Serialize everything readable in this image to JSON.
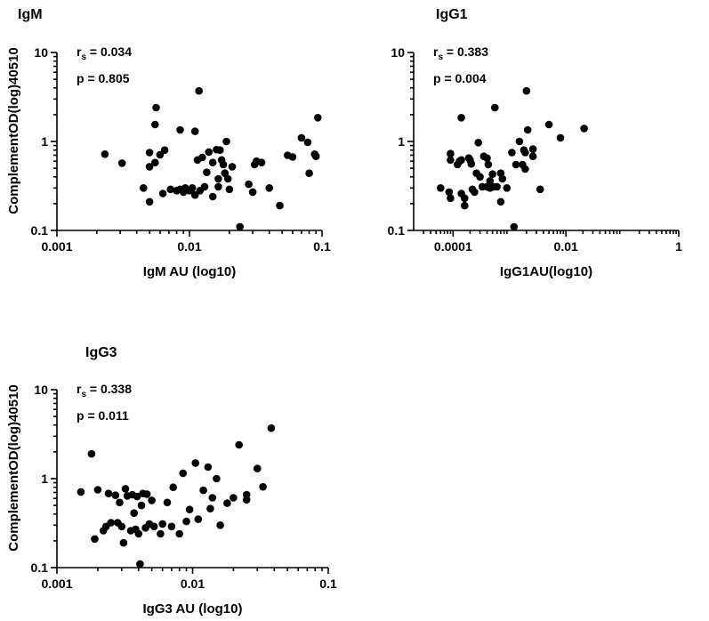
{
  "chart_data": [
    {
      "type": "scatter",
      "id": "igm",
      "title": "IgM",
      "xlabel": "IgM AU (log10)",
      "ylabel": "ComplementOD(log)40510",
      "xscale": "log",
      "yscale": "log",
      "xlim": [
        0.001,
        0.1
      ],
      "ylim": [
        0.1,
        10
      ],
      "xticks": [
        0.001,
        0.01,
        0.1
      ],
      "xtick_labels": [
        "0.001",
        "0.01",
        "0.1"
      ],
      "yticks": [
        0.1,
        1,
        10
      ],
      "ytick_labels": [
        "0.1",
        "1",
        "10"
      ],
      "stats": {
        "rs_prefix": "r",
        "rs_sub": "s",
        "rs_value": " = 0.034",
        "p_text": "p = 0.805"
      },
      "points": [
        [
          0.0023,
          0.72
        ],
        [
          0.0031,
          0.57
        ],
        [
          0.0045,
          0.3
        ],
        [
          0.005,
          0.75
        ],
        [
          0.005,
          0.52
        ],
        [
          0.005,
          0.21
        ],
        [
          0.0055,
          1.55
        ],
        [
          0.0056,
          2.4
        ],
        [
          0.0055,
          0.58
        ],
        [
          0.006,
          0.71
        ],
        [
          0.0063,
          0.26
        ],
        [
          0.0065,
          0.8
        ],
        [
          0.0072,
          0.29
        ],
        [
          0.008,
          0.28
        ],
        [
          0.0085,
          1.35
        ],
        [
          0.0085,
          0.29
        ],
        [
          0.009,
          0.27
        ],
        [
          0.0093,
          0.3
        ],
        [
          0.01,
          0.28
        ],
        [
          0.0105,
          0.3
        ],
        [
          0.011,
          1.3
        ],
        [
          0.011,
          0.25
        ],
        [
          0.0115,
          0.62
        ],
        [
          0.0118,
          3.7
        ],
        [
          0.012,
          0.28
        ],
        [
          0.0125,
          0.66
        ],
        [
          0.013,
          0.31
        ],
        [
          0.0135,
          0.45
        ],
        [
          0.014,
          0.76
        ],
        [
          0.015,
          0.58
        ],
        [
          0.015,
          0.24
        ],
        [
          0.016,
          0.81
        ],
        [
          0.0165,
          0.38
        ],
        [
          0.0165,
          0.31
        ],
        [
          0.017,
          0.8
        ],
        [
          0.0175,
          0.62
        ],
        [
          0.018,
          0.55
        ],
        [
          0.0185,
          0.44
        ],
        [
          0.019,
          1.0
        ],
        [
          0.0195,
          0.38
        ],
        [
          0.02,
          0.29
        ],
        [
          0.021,
          0.52
        ],
        [
          0.024,
          0.11
        ],
        [
          0.028,
          0.33
        ],
        [
          0.03,
          0.27
        ],
        [
          0.031,
          0.55
        ],
        [
          0.032,
          0.6
        ],
        [
          0.035,
          0.58
        ],
        [
          0.04,
          0.3
        ],
        [
          0.048,
          0.19
        ],
        [
          0.055,
          0.7
        ],
        [
          0.06,
          0.67
        ],
        [
          0.07,
          1.1
        ],
        [
          0.078,
          0.98
        ],
        [
          0.08,
          0.44
        ],
        [
          0.088,
          0.72
        ],
        [
          0.093,
          1.85
        ],
        [
          0.09,
          0.68
        ]
      ]
    },
    {
      "type": "scatter",
      "id": "igg1",
      "title": "IgG1",
      "xlabel": "IgG1AU(log10)",
      "ylabel": "",
      "xscale": "log",
      "yscale": "log",
      "xlim": [
        2e-05,
        1
      ],
      "ylim": [
        0.1,
        10
      ],
      "xticks": [
        0.0001,
        0.01,
        1
      ],
      "xtick_labels": [
        "0.0001",
        "0.01",
        "1"
      ],
      "yticks": [
        0.1,
        1,
        10
      ],
      "ytick_labels": [
        "0.1",
        "1",
        "10"
      ],
      "stats": {
        "rs_prefix": "r",
        "rs_sub": "s",
        "rs_value": " = 0.383",
        "p_text": "p = 0.004"
      },
      "points": [
        [
          6e-05,
          0.3
        ],
        [
          8.5e-05,
          0.27
        ],
        [
          9e-05,
          0.73
        ],
        [
          9e-05,
          0.62
        ],
        [
          9e-05,
          0.23
        ],
        [
          0.00012,
          0.55
        ],
        [
          0.00013,
          0.6
        ],
        [
          0.00014,
          0.62
        ],
        [
          0.00014,
          0.26
        ],
        [
          0.00014,
          1.85
        ],
        [
          0.00016,
          0.19
        ],
        [
          0.00016,
          0.23
        ],
        [
          0.00019,
          0.65
        ],
        [
          0.0002,
          0.62
        ],
        [
          0.00021,
          0.56
        ],
        [
          0.00022,
          0.29
        ],
        [
          0.00024,
          0.27
        ],
        [
          0.00026,
          0.44
        ],
        [
          0.00028,
          0.97
        ],
        [
          0.0003,
          0.4
        ],
        [
          0.00033,
          0.31
        ],
        [
          0.00035,
          0.68
        ],
        [
          0.0004,
          0.31
        ],
        [
          0.0004,
          0.65
        ],
        [
          0.00042,
          0.55
        ],
        [
          0.00045,
          0.3
        ],
        [
          0.00045,
          0.36
        ],
        [
          0.0005,
          0.43
        ],
        [
          0.00052,
          0.31
        ],
        [
          0.00055,
          2.4
        ],
        [
          0.0006,
          0.31
        ],
        [
          0.0007,
          0.44
        ],
        [
          0.0007,
          0.21
        ],
        [
          0.00075,
          0.38
        ],
        [
          0.0009,
          0.3
        ],
        [
          0.0011,
          0.75
        ],
        [
          0.0012,
          0.11
        ],
        [
          0.0013,
          0.55
        ],
        [
          0.0015,
          1.0
        ],
        [
          0.0017,
          0.55
        ],
        [
          0.0018,
          0.8
        ],
        [
          0.0019,
          0.75
        ],
        [
          0.0019,
          0.49
        ],
        [
          0.002,
          3.7
        ],
        [
          0.0021,
          1.35
        ],
        [
          0.0026,
          0.68
        ],
        [
          0.0026,
          0.82
        ],
        [
          0.0035,
          0.29
        ],
        [
          0.005,
          1.55
        ],
        [
          0.008,
          1.1
        ],
        [
          0.021,
          1.4
        ]
      ]
    },
    {
      "type": "scatter",
      "id": "igg3",
      "title": "IgG3",
      "xlabel": "IgG3 AU (log10)",
      "ylabel": "ComplementOD(log)40510",
      "xscale": "log",
      "yscale": "log",
      "xlim": [
        0.001,
        0.1
      ],
      "ylim": [
        0.1,
        10
      ],
      "xticks": [
        0.001,
        0.01,
        0.1
      ],
      "xtick_labels": [
        "0.001",
        "0.01",
        "0.1"
      ],
      "yticks": [
        0.1,
        1,
        10
      ],
      "ytick_labels": [
        "0.1",
        "1",
        "10"
      ],
      "stats": {
        "rs_prefix": "r",
        "rs_sub": "s",
        "rs_value": " = 0.338",
        "p_text": "p = 0.011"
      },
      "points": [
        [
          0.0015,
          0.71
        ],
        [
          0.0018,
          1.9
        ],
        [
          0.0019,
          0.21
        ],
        [
          0.002,
          0.75
        ],
        [
          0.0022,
          0.26
        ],
        [
          0.0023,
          0.29
        ],
        [
          0.0024,
          0.68
        ],
        [
          0.0025,
          0.32
        ],
        [
          0.0027,
          0.65
        ],
        [
          0.0028,
          0.32
        ],
        [
          0.0029,
          0.54
        ],
        [
          0.003,
          0.29
        ],
        [
          0.0031,
          0.19
        ],
        [
          0.0032,
          0.77
        ],
        [
          0.0033,
          0.64
        ],
        [
          0.0035,
          0.26
        ],
        [
          0.0036,
          0.66
        ],
        [
          0.0037,
          0.41
        ],
        [
          0.0038,
          0.27
        ],
        [
          0.0039,
          0.63
        ],
        [
          0.004,
          0.24
        ],
        [
          0.0041,
          0.11
        ],
        [
          0.0042,
          0.5
        ],
        [
          0.0043,
          0.68
        ],
        [
          0.0045,
          0.28
        ],
        [
          0.0046,
          0.67
        ],
        [
          0.0048,
          0.31
        ],
        [
          0.005,
          0.57
        ],
        [
          0.0052,
          0.29
        ],
        [
          0.0058,
          0.24
        ],
        [
          0.006,
          0.31
        ],
        [
          0.0065,
          0.54
        ],
        [
          0.007,
          0.29
        ],
        [
          0.0072,
          0.8
        ],
        [
          0.008,
          0.24
        ],
        [
          0.0085,
          1.15
        ],
        [
          0.009,
          0.33
        ],
        [
          0.0095,
          0.45
        ],
        [
          0.0105,
          1.5
        ],
        [
          0.011,
          0.35
        ],
        [
          0.012,
          0.74
        ],
        [
          0.013,
          1.35
        ],
        [
          0.0135,
          0.46
        ],
        [
          0.014,
          0.61
        ],
        [
          0.015,
          1.0
        ],
        [
          0.016,
          0.3
        ],
        [
          0.018,
          0.53
        ],
        [
          0.02,
          0.61
        ],
        [
          0.022,
          2.4
        ],
        [
          0.025,
          0.58
        ],
        [
          0.025,
          0.66
        ],
        [
          0.03,
          1.3
        ],
        [
          0.033,
          0.81
        ],
        [
          0.038,
          3.7
        ]
      ]
    }
  ]
}
